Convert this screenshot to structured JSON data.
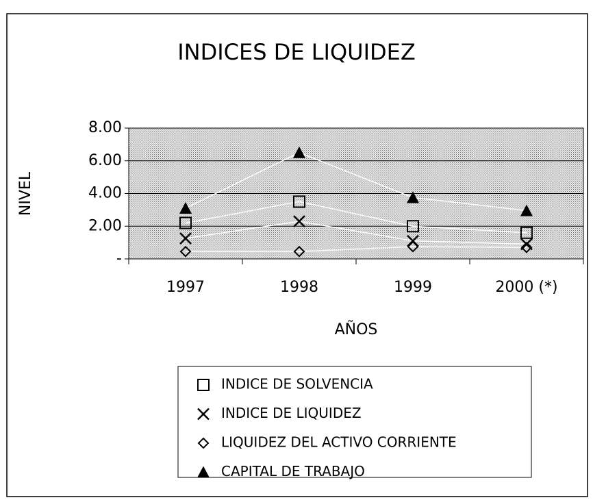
{
  "chart_data": {
    "type": "line",
    "title": "INDICES DE LIQUIDEZ",
    "x_label": "AÑOS",
    "y_label": "NIVEL",
    "categories": [
      "1997",
      "1998",
      "1999",
      "2000 (*)"
    ],
    "series": [
      {
        "name": "INDICE DE SOLVENCIA",
        "color": "#000000",
        "marker": "square",
        "values": [
          2.2,
          3.5,
          2.0,
          1.6
        ]
      },
      {
        "name": "INDICE DE LIQUIDEZ",
        "color": "#000000",
        "marker": "x",
        "values": [
          1.25,
          2.3,
          1.1,
          0.9
        ]
      },
      {
        "name": "LIQUIDEZ DEL ACTIVO CORRIENTE",
        "color": "#000000",
        "marker": "diamond",
        "values": [
          0.45,
          0.45,
          0.75,
          0.7
        ]
      },
      {
        "name": "CAPITAL DE TRABAJO",
        "color": "#000000",
        "marker": "triangle",
        "values": [
          3.1,
          6.5,
          3.75,
          2.95
        ]
      }
    ],
    "line_color": "#ffffff",
    "ylim": [
      0,
      8
    ],
    "yticks": [
      {
        "value": 0,
        "label": "-"
      },
      {
        "value": 2,
        "label": "2.00"
      },
      {
        "value": 4,
        "label": "4.00"
      },
      {
        "value": 6,
        "label": "6.00"
      },
      {
        "value": 8,
        "label": "8.00"
      }
    ],
    "grid": true,
    "legend": "bottom"
  }
}
